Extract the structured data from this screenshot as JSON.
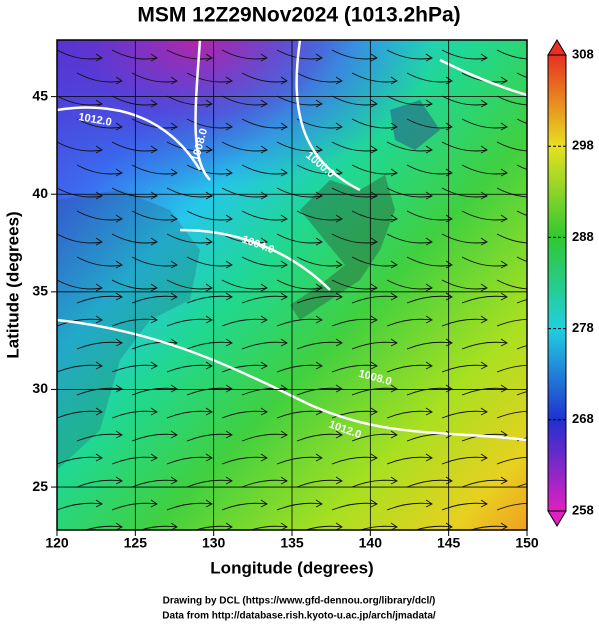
{
  "title": "MSM 12Z29Nov2024 (1013.2hPa)",
  "x_axis": {
    "label": "Longitude (degrees)",
    "lim": [
      120,
      150
    ],
    "ticks": [
      120,
      125,
      130,
      135,
      140,
      145,
      150
    ]
  },
  "y_axis": {
    "label": "Latitude  (degrees)",
    "lim": [
      22.8,
      47.9
    ],
    "ticks": [
      25,
      30,
      35,
      40,
      45
    ]
  },
  "colorbar": {
    "lim": [
      258,
      308
    ],
    "ticks": [
      258,
      268,
      278,
      288,
      298,
      308
    ]
  },
  "contour_labels": [
    "1012.0",
    "1008.0",
    "1000.0",
    "1004.0",
    "1008.0",
    "1012.0"
  ],
  "footer": [
    "Drawing by DCL (https://www.gfd-dennou.org/library/dcl/)",
    "Data from http://database.rish.kyoto-u.ac.jp/arch/jmadata/"
  ]
}
